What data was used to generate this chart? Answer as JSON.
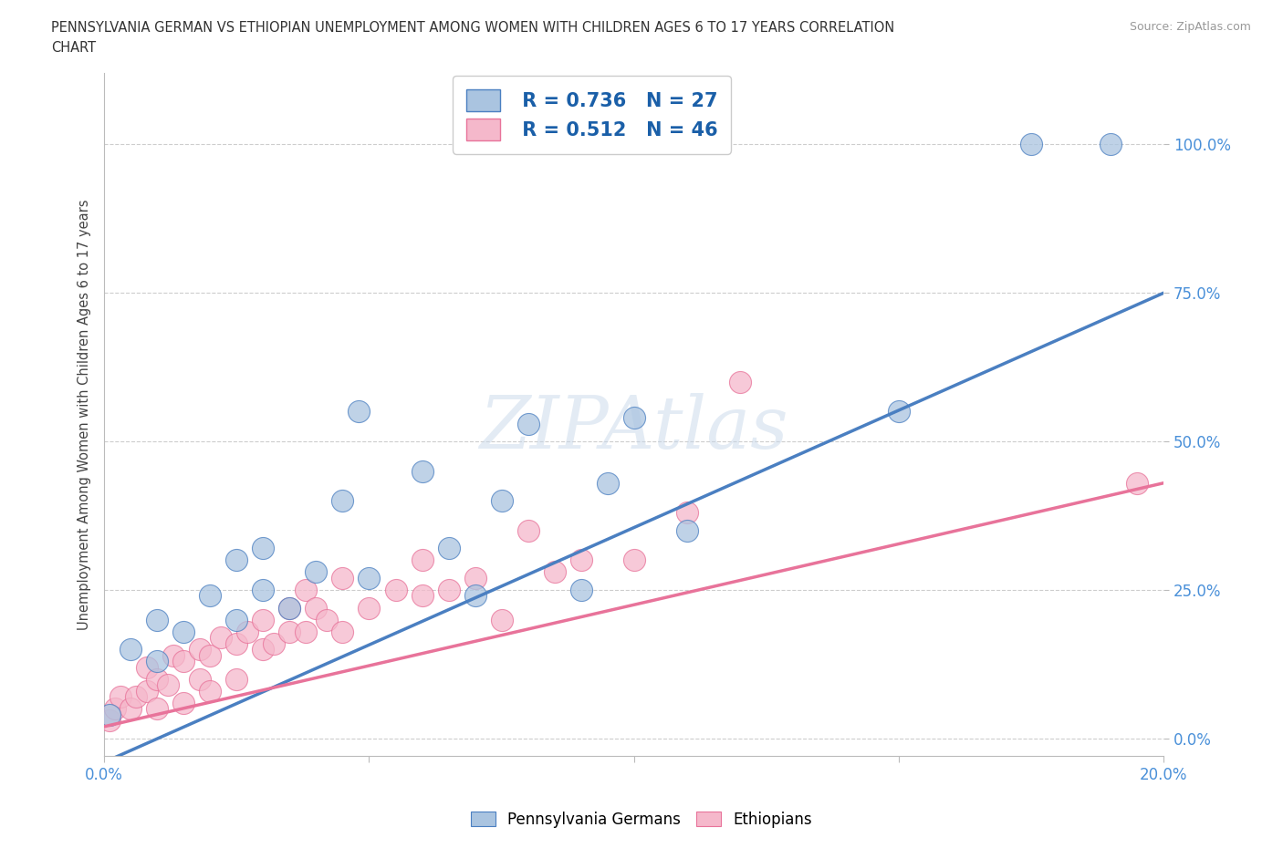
{
  "title_line1": "PENNSYLVANIA GERMAN VS ETHIOPIAN UNEMPLOYMENT AMONG WOMEN WITH CHILDREN AGES 6 TO 17 YEARS CORRELATION",
  "title_line2": "CHART",
  "source": "Source: ZipAtlas.com",
  "ylabel": "Unemployment Among Women with Children Ages 6 to 17 years",
  "xlim": [
    0.0,
    0.2
  ],
  "ylim": [
    -0.03,
    1.12
  ],
  "yticks": [
    0.0,
    0.25,
    0.5,
    0.75,
    1.0
  ],
  "ytick_labels": [
    "0.0%",
    "25.0%",
    "50.0%",
    "75.0%",
    "100.0%"
  ],
  "xticks": [
    0.0,
    0.05,
    0.1,
    0.15,
    0.2
  ],
  "xtick_labels": [
    "0.0%",
    "",
    "",
    "",
    "20.0%"
  ],
  "pg_color": "#aac4e0",
  "eth_color": "#f5b8cb",
  "pg_line_color": "#4a7fc1",
  "eth_line_color": "#e8739a",
  "pg_R": 0.736,
  "pg_N": 27,
  "eth_R": 0.512,
  "eth_N": 46,
  "watermark": "ZIPAtlas",
  "background_color": "#ffffff",
  "grid_color": "#c8c8c8",
  "pg_scatter_x": [
    0.001,
    0.005,
    0.01,
    0.01,
    0.015,
    0.02,
    0.025,
    0.025,
    0.03,
    0.03,
    0.035,
    0.04,
    0.045,
    0.048,
    0.05,
    0.06,
    0.065,
    0.07,
    0.075,
    0.08,
    0.09,
    0.095,
    0.1,
    0.11,
    0.15,
    0.175,
    0.19
  ],
  "pg_scatter_y": [
    0.04,
    0.15,
    0.2,
    0.13,
    0.18,
    0.24,
    0.2,
    0.3,
    0.25,
    0.32,
    0.22,
    0.28,
    0.4,
    0.55,
    0.27,
    0.45,
    0.32,
    0.24,
    0.4,
    0.53,
    0.25,
    0.43,
    0.54,
    0.35,
    0.55,
    1.0,
    1.0
  ],
  "eth_scatter_x": [
    0.001,
    0.002,
    0.003,
    0.005,
    0.006,
    0.008,
    0.008,
    0.01,
    0.01,
    0.012,
    0.013,
    0.015,
    0.015,
    0.018,
    0.018,
    0.02,
    0.02,
    0.022,
    0.025,
    0.025,
    0.027,
    0.03,
    0.03,
    0.032,
    0.035,
    0.035,
    0.038,
    0.038,
    0.04,
    0.042,
    0.045,
    0.045,
    0.05,
    0.055,
    0.06,
    0.06,
    0.065,
    0.07,
    0.075,
    0.08,
    0.085,
    0.09,
    0.1,
    0.11,
    0.12,
    0.195
  ],
  "eth_scatter_y": [
    0.03,
    0.05,
    0.07,
    0.05,
    0.07,
    0.08,
    0.12,
    0.05,
    0.1,
    0.09,
    0.14,
    0.06,
    0.13,
    0.1,
    0.15,
    0.08,
    0.14,
    0.17,
    0.16,
    0.1,
    0.18,
    0.15,
    0.2,
    0.16,
    0.18,
    0.22,
    0.18,
    0.25,
    0.22,
    0.2,
    0.18,
    0.27,
    0.22,
    0.25,
    0.24,
    0.3,
    0.25,
    0.27,
    0.2,
    0.35,
    0.28,
    0.3,
    0.3,
    0.38,
    0.6,
    0.43
  ],
  "pg_line_x0": 0.0,
  "pg_line_y0": -0.04,
  "pg_line_x1": 0.2,
  "pg_line_y1": 0.75,
  "eth_line_x0": 0.0,
  "eth_line_y0": 0.02,
  "eth_line_x1": 0.2,
  "eth_line_y1": 0.43
}
